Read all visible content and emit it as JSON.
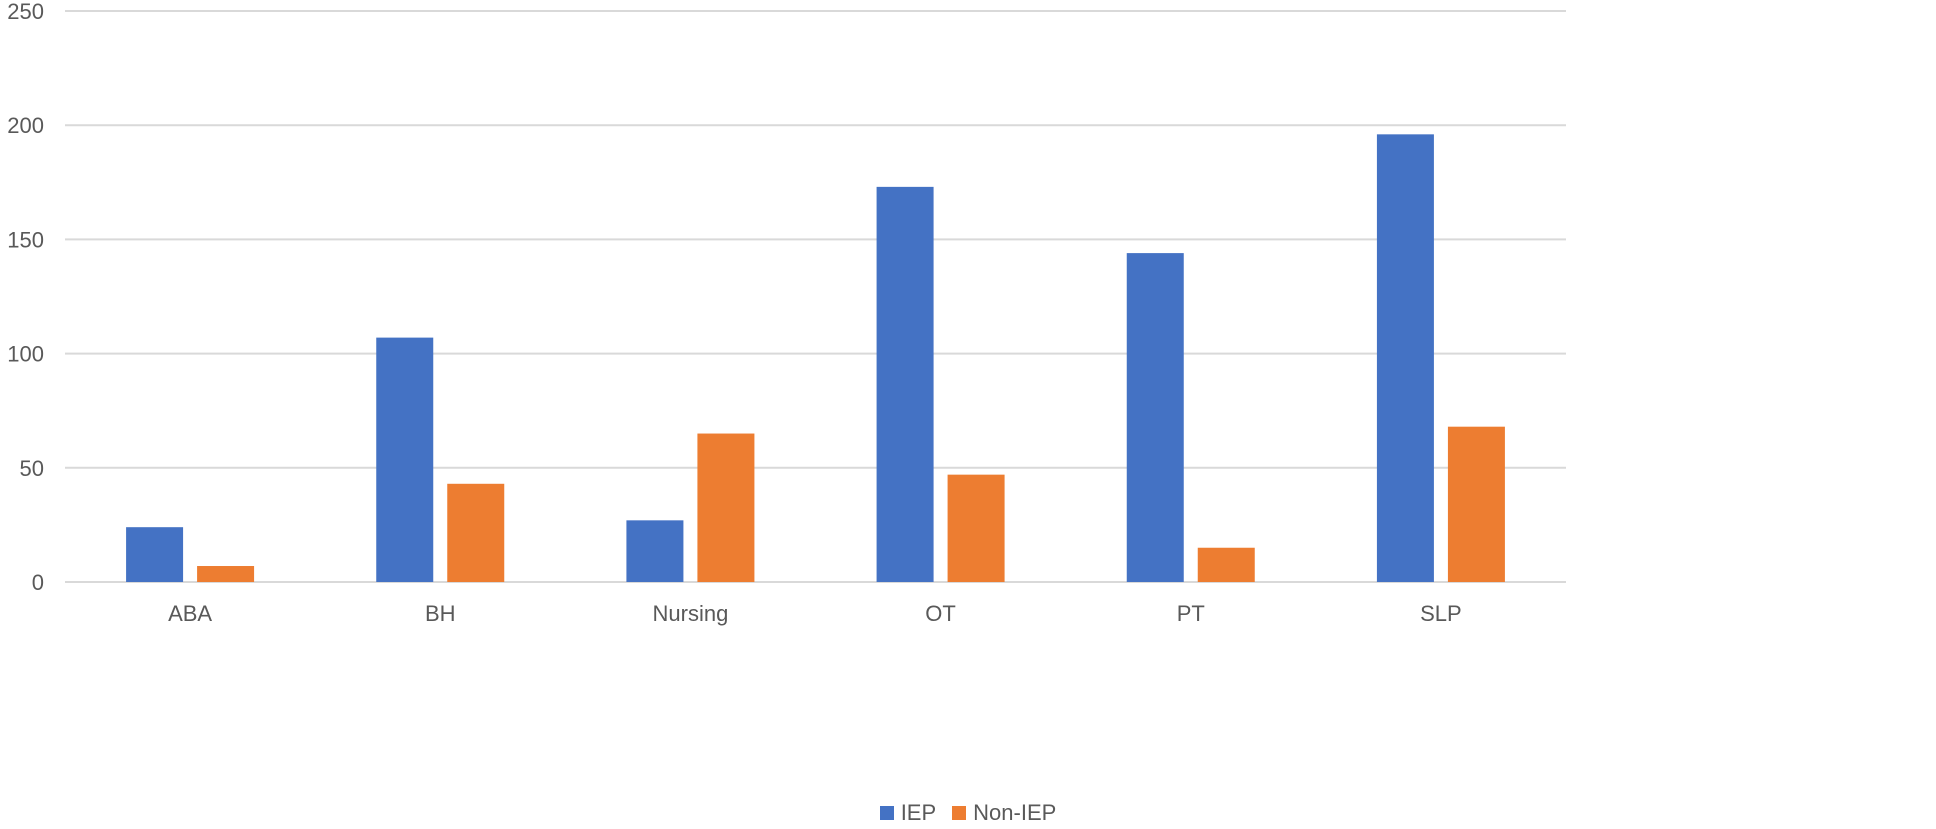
{
  "chart_data": {
    "type": "bar",
    "categories": [
      "ABA",
      "BH",
      "Nursing",
      "OT",
      "PT",
      "SLP"
    ],
    "series": [
      {
        "name": "IEP",
        "values": [
          24,
          107,
          27,
          173,
          144,
          196
        ],
        "color": "#4472C4"
      },
      {
        "name": "Non-IEP",
        "values": [
          7,
          43,
          65,
          47,
          15,
          68
        ],
        "color": "#ED7D31"
      }
    ],
    "ylim": [
      0,
      250
    ],
    "yticks": [
      0,
      50,
      100,
      150,
      200,
      250
    ],
    "grid": true,
    "legend_position": "bottom"
  }
}
